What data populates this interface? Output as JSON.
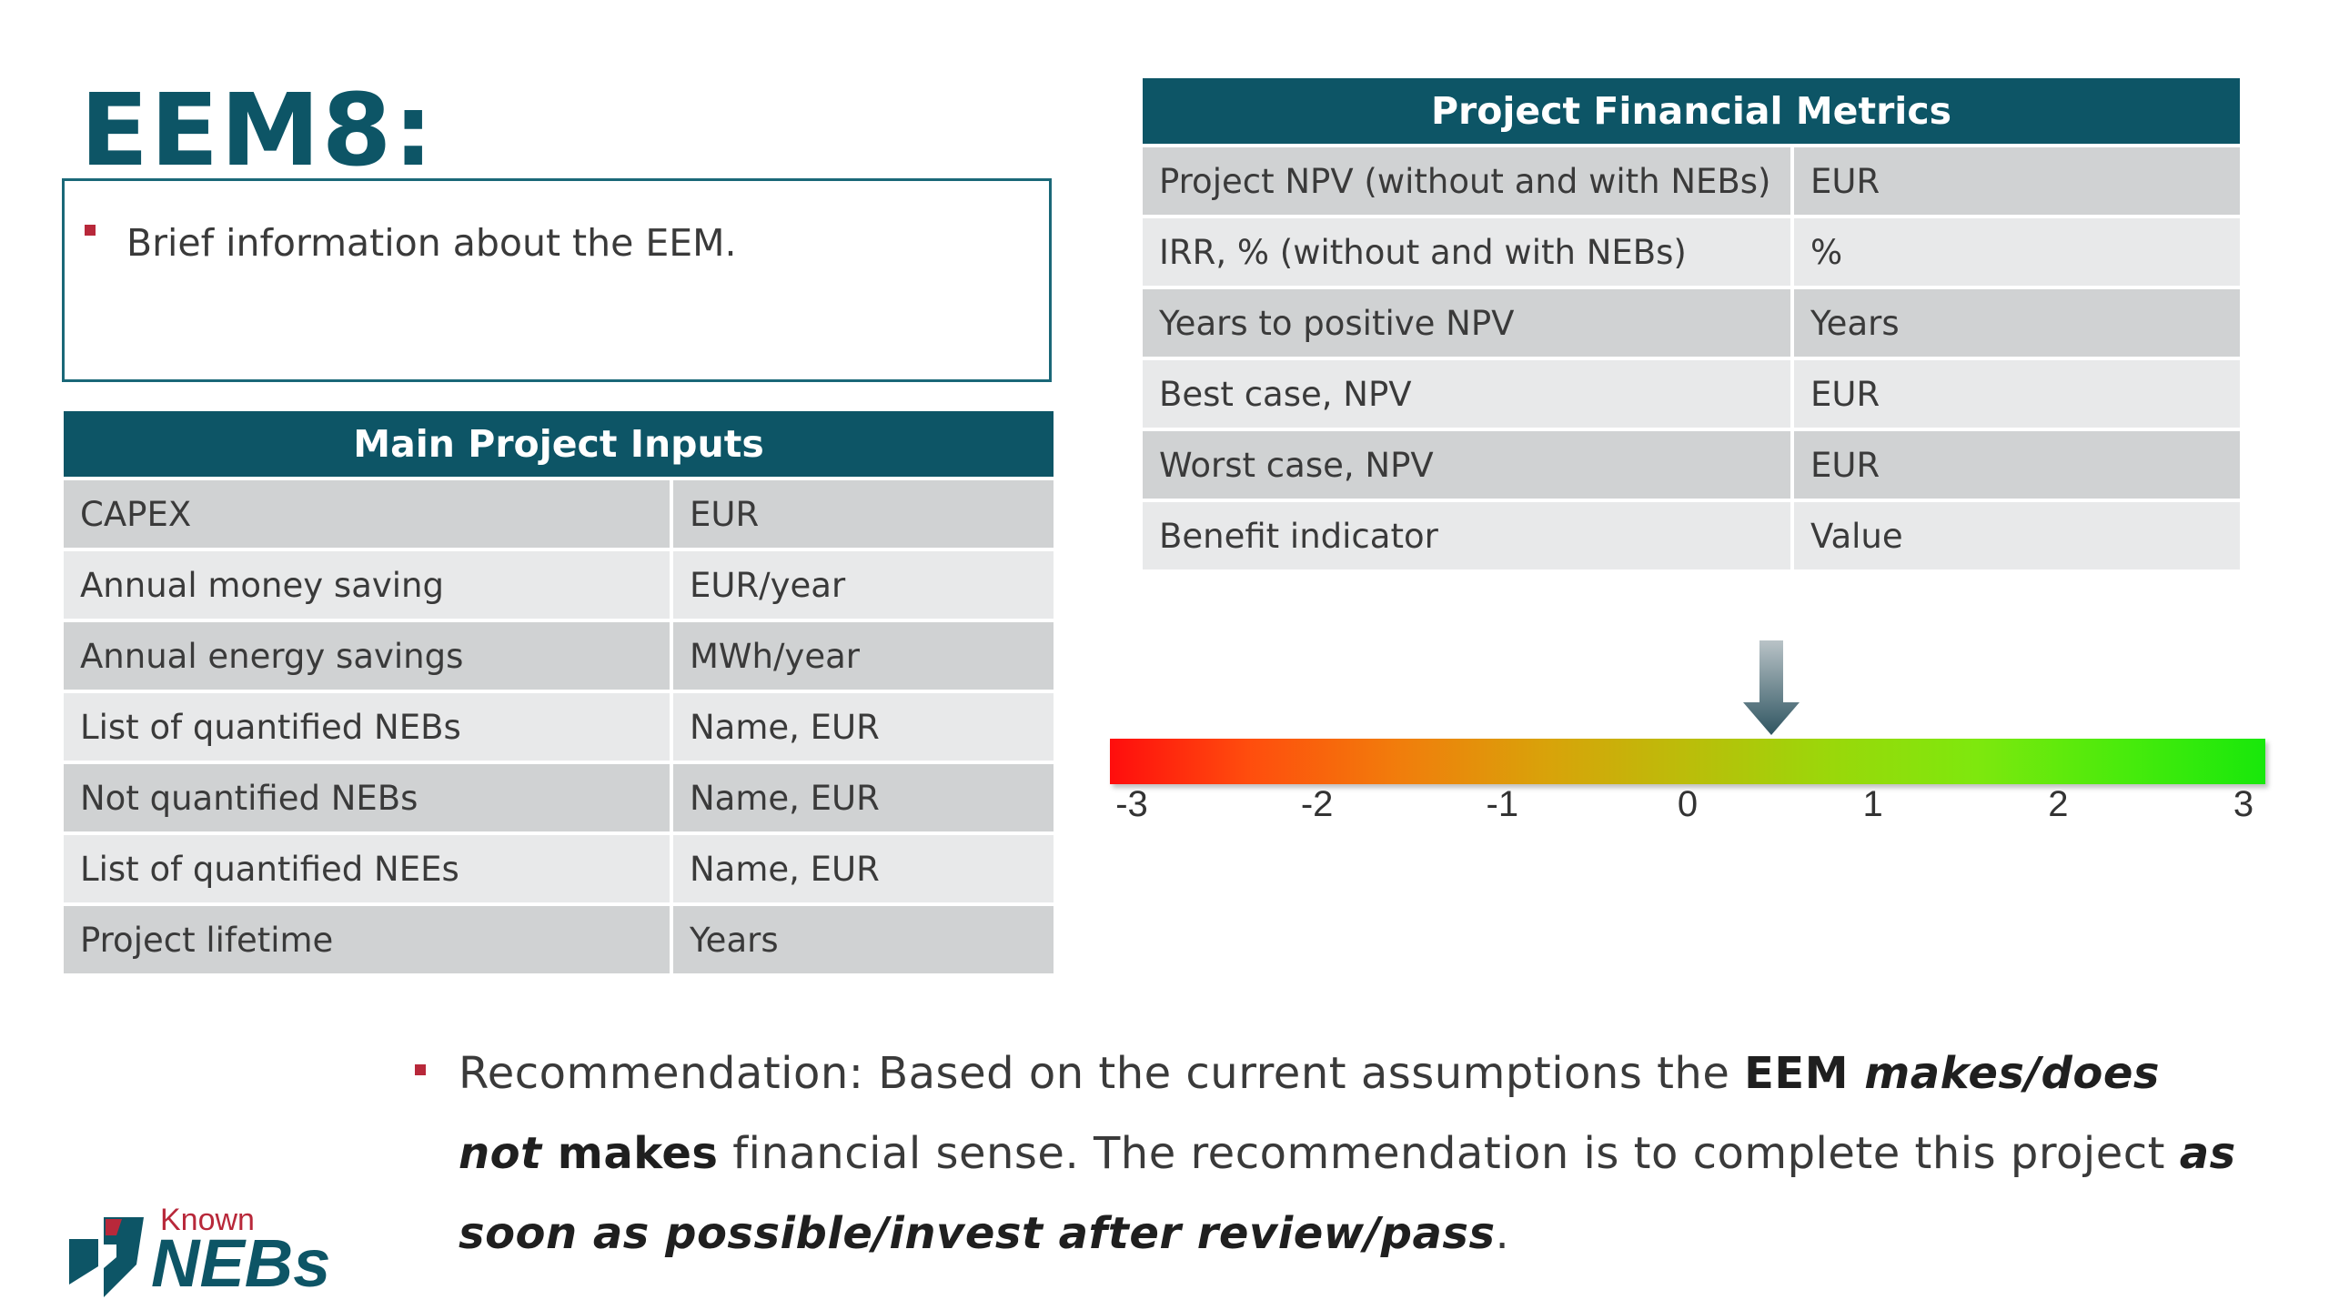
{
  "title": "EEM8:",
  "brief": {
    "text": "Brief information about the EEM."
  },
  "inputs_table": {
    "header": "Main Project Inputs",
    "rows": [
      {
        "label": "CAPEX",
        "value": "EUR"
      },
      {
        "label": "Annual money saving",
        "value": "EUR/year"
      },
      {
        "label": "Annual energy savings",
        "value": "MWh/year"
      },
      {
        "label": "List of quantified NEBs",
        "value": "Name, EUR"
      },
      {
        "label": "Not quantified NEBs",
        "value": "Name, EUR"
      },
      {
        "label": "List of quantified NEEs",
        "value": "Name, EUR"
      },
      {
        "label": "Project lifetime",
        "value": "Years"
      }
    ]
  },
  "metrics_table": {
    "header": "Project Financial Metrics",
    "rows": [
      {
        "label": "Project NPV (without and with NEBs)",
        "value": "EUR"
      },
      {
        "label": "IRR, % (without and with NEBs)",
        "value": "%"
      },
      {
        "label": "Years to positive NPV",
        "value": "Years"
      },
      {
        "label": "Best case, NPV",
        "value": "EUR"
      },
      {
        "label": "Worst case, NPV",
        "value": "EUR"
      },
      {
        "label": "Benefit indicator",
        "value": "Value"
      }
    ]
  },
  "scale": {
    "ticks": [
      "-3",
      "-2",
      "-1",
      "0",
      "1",
      "2",
      "3"
    ],
    "indicator_value": 0.45,
    "colors": {
      "low": "#ff0d0d",
      "mid": "#bbbd0a",
      "high": "#18e80b"
    }
  },
  "recommendation": {
    "line1_plain": "Recommendation: Based on the current assumptions the ",
    "line1_bold": "EEM ",
    "line1_bolditalic": "makes/does",
    "line2_bolditalic": "not",
    "line2_bold": " makes",
    "line2_plain": " financial sense. The recommendation is to complete this project ",
    "line2_bolditalic_end": "as",
    "line3_bolditalic": "soon as possible/invest after review/pass",
    "line3_plain": "."
  },
  "logo": {
    "known": "Known",
    "nebs": "NEBs"
  },
  "colors": {
    "header_bg": "#0d5566",
    "bullet": "#b8283a",
    "row_dark": "#d0d2d3",
    "row_light": "#e8e9ea"
  }
}
